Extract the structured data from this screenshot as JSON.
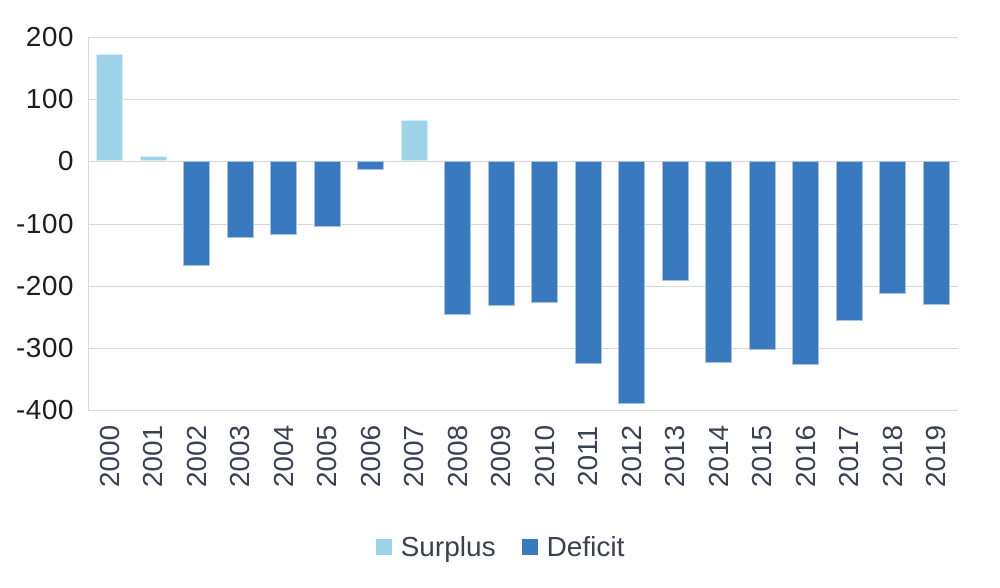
{
  "chart_data": {
    "type": "bar",
    "title": "",
    "xlabel": "",
    "ylabel": "",
    "categories": [
      "2000",
      "2001",
      "2002",
      "2003",
      "2004",
      "2005",
      "2006",
      "2007",
      "2008",
      "2009",
      "2010",
      "2011",
      "2012",
      "2013",
      "2014",
      "2015",
      "2016",
      "2017",
      "2018",
      "2019"
    ],
    "values": [
      172,
      8,
      -168,
      -124,
      -119,
      -105,
      -14,
      66,
      -247,
      -233,
      -228,
      -326,
      -390,
      -192,
      -324,
      -303,
      -328,
      -257,
      -214,
      -231
    ],
    "series_rule": "values >= 0 are Surplus (light blue), values < 0 are Deficit (dark blue)",
    "y_ticks": [
      200,
      100,
      0,
      -100,
      -200,
      -300,
      -400
    ],
    "ylim": [
      -400,
      200
    ],
    "grid": "horizontal",
    "legend": {
      "position": "bottom-center",
      "entries": [
        {
          "label": "Surplus",
          "color": "#9ed4ea"
        },
        {
          "label": "Deficit",
          "color": "#3879bf"
        }
      ]
    }
  },
  "colors": {
    "surplus": "#9ed4ea",
    "deficit": "#3879bf",
    "gridline": "#d7d7d7",
    "y_tick_text": "#1e1e1e",
    "x_tick_text": "#3a4252",
    "legend_text": "#3a4252",
    "background": "#ffffff"
  }
}
